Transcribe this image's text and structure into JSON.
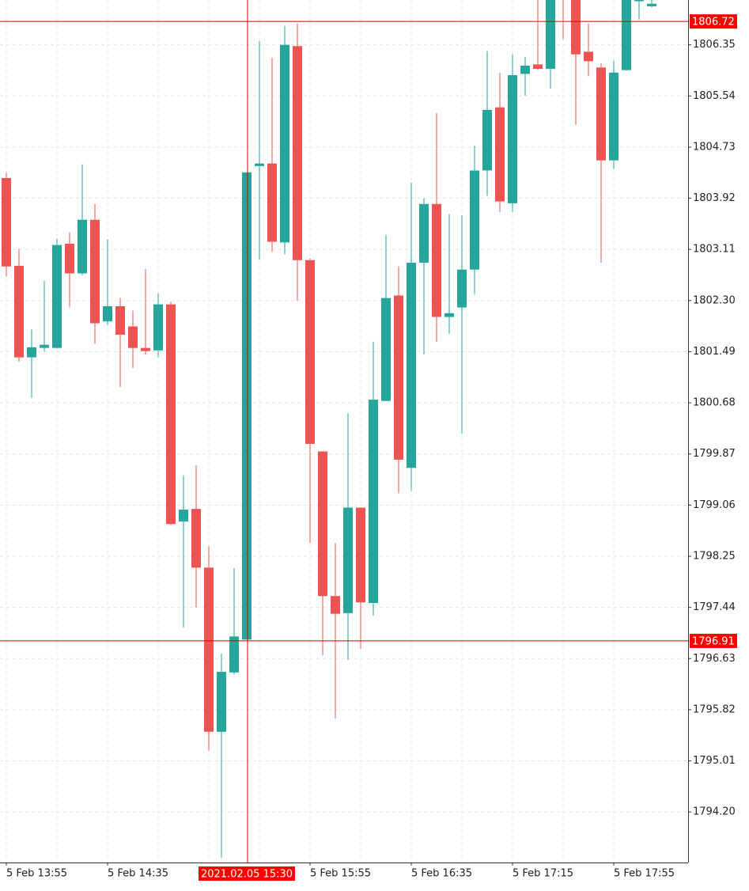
{
  "chart_data": {
    "type": "candlestick",
    "categories": [
      "5 Feb 13:55",
      null,
      null,
      null,
      null,
      null,
      null,
      null,
      "5 Feb 14:35",
      null,
      null,
      null,
      null,
      null,
      null,
      null,
      null,
      null,
      null,
      null,
      null,
      null,
      null,
      null,
      "5 Feb 15:55",
      null,
      null,
      null,
      null,
      null,
      null,
      null,
      "5 Feb 16:35",
      null,
      null,
      null,
      null,
      null,
      null,
      null,
      "5 Feb 17:15",
      null,
      null,
      null,
      null,
      null,
      null,
      null,
      "5 Feb 17:55",
      null,
      null,
      null
    ],
    "open": [
      1804.24,
      1802.85,
      1801.4,
      1801.55,
      1801.55,
      1803.2,
      1802.73,
      1803.58,
      1801.97,
      1802.21,
      1801.89,
      1801.55,
      1801.51,
      1802.24,
      1798.8,
      1799.0,
      1798.07,
      1795.47,
      1796.41,
      1796.93,
      1804.43,
      1804.47,
      1803.22,
      1806.33,
      1802.94,
      1799.91,
      1797.62,
      1797.35,
      1799.02,
      1797.51,
      1800.71,
      1802.38,
      1799.65,
      1802.9,
      1803.83,
      1802.04,
      1802.19,
      1802.79,
      1804.36,
      1805.36,
      1803.84,
      1805.89,
      1806.04,
      1805.97,
      1807.44,
      1807.1,
      1806.24,
      1805.99,
      1804.52,
      1805.95,
      1807.04,
      1806.96
    ],
    "high": [
      1804.33,
      1803.12,
      1801.84,
      1802.61,
      1803.28,
      1803.38,
      1804.46,
      1803.83,
      1803.27,
      1802.34,
      1802.14,
      1802.8,
      1802.41,
      1802.28,
      1799.53,
      1799.69,
      1798.41,
      1796.71,
      1798.06,
      1804.33,
      1806.41,
      1806.14,
      1806.65,
      1806.69,
      1802.97,
      1799.91,
      1798.46,
      1800.52,
      1799.02,
      1801.65,
      1803.34,
      1802.84,
      1804.17,
      1803.92,
      1805.27,
      1803.67,
      1803.65,
      1804.75,
      1806.25,
      1805.91,
      1806.2,
      1806.16,
      1807.13,
      1807.19,
      1807.57,
      1807.13,
      1806.69,
      1806.06,
      1806.1,
      1807.13,
      1807.13,
      1807.13
    ],
    "low": [
      1802.68,
      1801.33,
      1800.76,
      1801.49,
      1801.54,
      1802.19,
      1802.7,
      1801.62,
      1801.91,
      1800.93,
      1801.23,
      1801.44,
      1801.4,
      1798.74,
      1797.12,
      1797.44,
      1795.17,
      1793.47,
      1796.38,
      1796.93,
      1802.95,
      1803.07,
      1803.03,
      1802.3,
      1798.46,
      1796.68,
      1795.68,
      1796.61,
      1796.78,
      1797.31,
      1800.71,
      1799.25,
      1799.28,
      1801.45,
      1801.65,
      1801.77,
      1800.19,
      1802.39,
      1803.96,
      1803.7,
      1803.7,
      1805.54,
      1805.95,
      1805.66,
      1806.44,
      1805.08,
      1805.85,
      1802.9,
      1804.38,
      1805.94,
      1806.75,
      1806.94
    ],
    "close": [
      1802.84,
      1801.4,
      1801.56,
      1801.6,
      1803.18,
      1802.73,
      1803.58,
      1801.94,
      1802.21,
      1801.76,
      1801.55,
      1801.5,
      1802.24,
      1798.76,
      1798.99,
      1798.07,
      1795.47,
      1796.42,
      1796.98,
      1804.33,
      1804.47,
      1803.23,
      1806.35,
      1802.94,
      1800.03,
      1797.62,
      1797.34,
      1799.02,
      1797.52,
      1800.73,
      1802.34,
      1799.78,
      1802.9,
      1803.83,
      1802.04,
      1802.1,
      1802.79,
      1804.36,
      1805.32,
      1803.87,
      1805.87,
      1806.02,
      1805.97,
      1807.13,
      1807.13,
      1806.2,
      1806.09,
      1804.52,
      1805.91,
      1807.1,
      1807.07,
      1807.0
    ],
    "colors": {
      "up": "#26a69a",
      "down": "#ef5350"
    },
    "ylim": [
      1793.4,
      1807.06
    ],
    "yticks": [
      1806.35,
      1805.54,
      1804.73,
      1803.92,
      1803.11,
      {
        "value": 1802.3,
        "label": "1802.30"
      },
      1801.49,
      1800.68,
      1799.87,
      1799.06,
      1798.25,
      1797.44,
      1796.63,
      1795.82,
      1795.01,
      {
        "value": 1794.2,
        "label": "1794.20"
      }
    ],
    "grid": true,
    "price_lines": [
      1806.72,
      1796.91
    ],
    "crosshair": {
      "x_label": "2021.02.05 15:30"
    }
  }
}
